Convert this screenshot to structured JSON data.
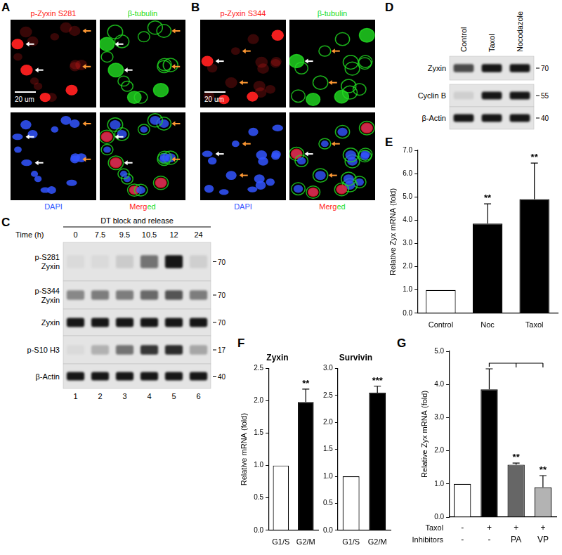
{
  "chart_data": [
    {
      "panel": "E",
      "type": "bar",
      "categories": [
        "Control",
        "Noc",
        "Taxol"
      ],
      "values": [
        1.0,
        3.85,
        4.9
      ],
      "errors": [
        0,
        0.85,
        1.55
      ],
      "significance": [
        null,
        "**",
        "**"
      ],
      "colors": [
        "#ffffff",
        "#000000",
        "#000000"
      ],
      "y_label": "Relative Zyx mRNA (fold)",
      "ylim": [
        0,
        7
      ],
      "yticks": [
        {
          "value": 0,
          "label": "0.0"
        },
        {
          "value": 1,
          "label": "1.0"
        },
        {
          "value": 2,
          "label": "2.0"
        },
        {
          "value": 3,
          "label": "3.0"
        },
        {
          "value": 4,
          "label": "4.0"
        },
        {
          "value": 5,
          "label": "5.0"
        },
        {
          "value": 6,
          "label": "6.0"
        },
        {
          "value": 7,
          "label": "7.0"
        }
      ],
      "grid": false
    },
    {
      "panel": "F",
      "type": "bar",
      "title": "Zyxin",
      "categories": [
        "G1/S",
        "G2/M"
      ],
      "values": [
        1.0,
        1.98
      ],
      "errors": [
        0,
        0.2
      ],
      "significance": [
        null,
        "**"
      ],
      "colors": [
        "#ffffff",
        "#000000"
      ],
      "y_label": "Relative mRNA (fold)",
      "ylim": [
        0,
        2.5
      ],
      "yticks": [
        {
          "value": 0,
          "label": "0.0"
        },
        0.5,
        {
          "value": 1,
          "label": "1.0"
        },
        1.5,
        {
          "value": 2,
          "label": "2.0"
        },
        2.5
      ],
      "grid": false
    },
    {
      "type": "bar",
      "title": "Survivin",
      "categories": [
        "G1/S",
        "G2/M"
      ],
      "values": [
        1.0,
        2.55
      ],
      "errors": [
        0,
        0.12
      ],
      "significance": [
        null,
        "***"
      ],
      "colors": [
        "#ffffff",
        "#000000"
      ],
      "ylim": [
        0,
        3
      ],
      "yticks": [
        {
          "value": 0,
          "label": "0.0"
        },
        0.5,
        {
          "value": 1,
          "label": "1.0"
        },
        1.5,
        {
          "value": 2,
          "label": "2.0"
        },
        2.5,
        {
          "value": 3,
          "label": "3.0"
        }
      ],
      "grid": false
    },
    {
      "panel": "G",
      "type": "bar",
      "categories": [
        null,
        null,
        null,
        null
      ],
      "values": [
        1.0,
        3.85,
        1.58,
        0.9
      ],
      "errors": [
        0,
        0.62,
        0.05,
        0.35
      ],
      "significance": [
        null,
        null,
        "**",
        "**"
      ],
      "colors": [
        "#ffffff",
        "#000000",
        "#666666",
        "#b3b3b3"
      ],
      "y_label": "Relative Zyx mRNA (fold)",
      "conditions": [
        {
          "label": "Taxol",
          "values": [
            "-",
            "+",
            "+",
            "+"
          ]
        },
        {
          "label": "Inhibitors",
          "values": [
            "-",
            "-",
            "PA",
            "VP"
          ]
        }
      ],
      "ylim": [
        0,
        5
      ],
      "yticks": [
        {
          "value": 0,
          "label": "0.0"
        },
        {
          "value": 1,
          "label": "1.0"
        },
        {
          "value": 2,
          "label": "2.0"
        },
        {
          "value": 3,
          "label": "3.0"
        },
        {
          "value": 4,
          "label": "4.0"
        },
        {
          "value": 5,
          "label": "5.0"
        }
      ],
      "grid": false
    }
  ],
  "images": [
    {
      "panel": "A",
      "scale_bar": "20 um",
      "channels": [
        {
          "label": "p-Zyxin S281",
          "color": "#ff2020"
        },
        {
          "label": "β-tubulin",
          "color": "#22dd22"
        },
        {
          "label": "DAPI",
          "color": "#3355ff"
        },
        {
          "label_parts": [
            {
              "text": "Merg",
              "color": "#ff2020"
            },
            {
              "text": "ed",
              "color": "#22dd22"
            }
          ]
        }
      ]
    },
    {
      "panel": "B",
      "scale_bar": "20 um",
      "channels": [
        {
          "label": "p-Zyxin S344",
          "color": "#ff2020"
        },
        {
          "label": "β-tubulin",
          "color": "#22dd22"
        },
        {
          "label": "DAPI",
          "color": "#3355ff"
        },
        {
          "label_parts": [
            {
              "text": "Merg",
              "color": "#ff2020"
            },
            {
              "text": "ed",
              "color": "#22dd22"
            }
          ]
        }
      ]
    }
  ],
  "blots": [
    {
      "panel": "C",
      "header": "DT block and release",
      "time_label": "Time (h)",
      "times": [
        0,
        7.5,
        9.5,
        10.5,
        12,
        24
      ],
      "lanes": [
        1,
        2,
        3,
        4,
        5,
        6
      ],
      "rows": [
        {
          "label": [
            "p-S281",
            "Zyxin"
          ],
          "mw": [
            70
          ],
          "band_intensity": [
            0.05,
            0.05,
            0.12,
            0.55,
            1.0,
            0.1
          ]
        },
        {
          "label": [
            "p-S344",
            "Zyxin"
          ],
          "mw": [
            70
          ],
          "band_intensity": [
            0.45,
            0.5,
            0.5,
            0.6,
            0.7,
            0.5
          ]
        },
        {
          "label": [
            "Zyxin"
          ],
          "mw": [
            70
          ],
          "band_intensity": [
            1.0,
            1.0,
            1.0,
            1.0,
            1.0,
            1.0
          ]
        },
        {
          "label": [
            "p-S10 H3"
          ],
          "mw": [
            17
          ],
          "band_intensity": [
            0.05,
            0.25,
            0.55,
            0.85,
            0.9,
            0.3
          ]
        },
        {
          "label": [
            "β-Actin"
          ],
          "mw": [
            40
          ],
          "band_intensity": [
            1.0,
            1.0,
            1.0,
            1.0,
            1.0,
            1.0
          ]
        }
      ]
    },
    {
      "panel": "D",
      "lanes": [
        "Control",
        "Taxol",
        "Nocodazole"
      ],
      "rows": [
        {
          "label": [
            "Zyxin"
          ],
          "mw": [
            70
          ],
          "band_intensity": [
            0.75,
            1.0,
            1.0
          ]
        },
        {
          "label": [
            "Cyclin B"
          ],
          "mw": [
            55
          ],
          "band_intensity": [
            0.1,
            1.0,
            1.0
          ]
        },
        {
          "label": [
            "β-Actin"
          ],
          "mw": [
            40
          ],
          "band_intensity": [
            1.0,
            1.0,
            1.0
          ]
        }
      ]
    }
  ]
}
